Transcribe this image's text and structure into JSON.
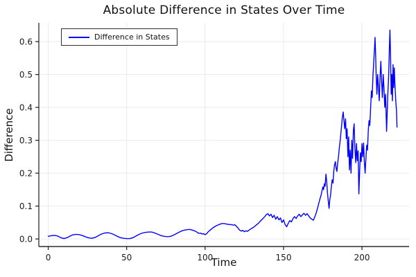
{
  "chart": {
    "title": "Absolute Difference in States Over Time",
    "xlabel": "Time",
    "ylabel": "Difference",
    "legend": {
      "label": "Difference in States"
    },
    "colors": {
      "line": "#0000ff",
      "grid": "#e9e9e9",
      "axis": "#2b2b2b",
      "text": "#191919",
      "background": "#ffffff"
    }
  },
  "chart_data": {
    "type": "line",
    "title": "Absolute Difference in States Over Time",
    "xlabel": "Time",
    "ylabel": "Difference",
    "grid": true,
    "legend_position": "top-left",
    "xlim": [
      -6,
      230
    ],
    "ylim": [
      -0.023,
      0.657
    ],
    "xticks": [
      0,
      50,
      100,
      150,
      200
    ],
    "yticks": [
      0.0,
      0.1,
      0.2,
      0.3,
      0.4,
      0.5,
      0.6
    ],
    "series": [
      {
        "name": "Difference in States",
        "color": "#0000ff",
        "x": [
          0,
          2,
          4,
          6,
          8,
          10,
          12,
          14,
          16,
          18,
          20,
          22,
          24,
          26,
          28,
          30,
          32,
          34,
          36,
          38,
          40,
          42,
          44,
          46,
          48,
          50,
          52,
          54,
          56,
          58,
          60,
          62,
          64,
          66,
          68,
          70,
          72,
          74,
          76,
          78,
          80,
          82,
          84,
          86,
          88,
          90,
          92,
          94,
          95,
          96,
          97,
          98,
          99,
          100,
          101,
          102,
          103,
          104,
          105,
          106,
          107,
          108,
          109,
          110,
          111,
          112,
          113,
          114,
          115,
          116,
          117,
          118,
          119,
          120,
          121,
          122,
          123,
          124,
          125,
          126,
          127,
          128,
          129,
          130,
          131,
          132,
          133,
          134,
          135,
          136,
          137,
          138,
          139,
          140,
          141,
          142,
          143,
          144,
          145,
          146,
          147,
          148,
          149,
          150,
          151,
          152,
          153,
          154,
          155,
          156,
          157,
          158,
          159,
          160,
          161,
          162,
          163,
          164,
          165,
          166,
          167,
          168,
          169,
          170,
          171,
          172,
          173,
          174,
          175,
          175.5,
          176,
          176.5,
          177,
          177.5,
          178,
          178.5,
          179,
          179.5,
          180,
          180.5,
          181,
          181.5,
          182,
          182.5,
          183,
          183.5,
          184,
          184.5,
          185,
          185.5,
          186,
          186.5,
          187,
          187.5,
          188,
          188.5,
          189,
          189.5,
          190,
          190.5,
          191,
          191.5,
          192,
          192.5,
          193,
          193.5,
          194,
          194.5,
          195,
          195.5,
          196,
          196.5,
          197,
          197.5,
          198,
          198.5,
          199,
          199.5,
          200,
          200.5,
          201,
          201.5,
          202,
          202.5,
          203,
          203.5,
          204,
          204.5,
          205,
          205.5,
          206,
          206.5,
          207,
          207.5,
          208,
          208.3,
          208.7,
          209,
          209.5,
          210,
          210.5,
          211,
          211.5,
          212,
          212.5,
          213,
          213.5,
          214,
          214.5,
          215,
          215.7,
          216.3,
          217,
          217.4,
          217.8,
          218.2,
          218.6,
          219,
          219.4,
          219.8,
          220.2,
          220.6,
          221,
          221.5,
          222,
          222.3
        ],
        "y": [
          0.008,
          0.01,
          0.011,
          0.009,
          0.004,
          0.001,
          0.004,
          0.009,
          0.013,
          0.014,
          0.013,
          0.01,
          0.006,
          0.003,
          0.002,
          0.005,
          0.01,
          0.015,
          0.018,
          0.019,
          0.017,
          0.013,
          0.008,
          0.004,
          0.002,
          0.001,
          0.001,
          0.004,
          0.009,
          0.014,
          0.018,
          0.02,
          0.021,
          0.021,
          0.018,
          0.014,
          0.01,
          0.008,
          0.007,
          0.008,
          0.012,
          0.017,
          0.022,
          0.026,
          0.028,
          0.029,
          0.027,
          0.023,
          0.02,
          0.017,
          0.018,
          0.015,
          0.016,
          0.013,
          0.016,
          0.022,
          0.026,
          0.03,
          0.034,
          0.037,
          0.04,
          0.042,
          0.044,
          0.046,
          0.047,
          0.047,
          0.046,
          0.045,
          0.044,
          0.044,
          0.043,
          0.042,
          0.043,
          0.038,
          0.033,
          0.027,
          0.024,
          0.026,
          0.022,
          0.025,
          0.023,
          0.027,
          0.03,
          0.033,
          0.036,
          0.04,
          0.044,
          0.048,
          0.053,
          0.058,
          0.063,
          0.068,
          0.074,
          0.077,
          0.07,
          0.075,
          0.065,
          0.072,
          0.06,
          0.068,
          0.058,
          0.064,
          0.05,
          0.058,
          0.044,
          0.037,
          0.048,
          0.056,
          0.052,
          0.062,
          0.068,
          0.062,
          0.07,
          0.075,
          0.068,
          0.073,
          0.078,
          0.072,
          0.077,
          0.07,
          0.064,
          0.06,
          0.057,
          0.068,
          0.082,
          0.1,
          0.118,
          0.135,
          0.158,
          0.15,
          0.168,
          0.16,
          0.197,
          0.175,
          0.14,
          0.115,
          0.093,
          0.12,
          0.135,
          0.16,
          0.18,
          0.17,
          0.205,
          0.225,
          0.235,
          0.215,
          0.205,
          0.23,
          0.25,
          0.275,
          0.295,
          0.32,
          0.345,
          0.37,
          0.386,
          0.36,
          0.335,
          0.365,
          0.305,
          0.335,
          0.25,
          0.31,
          0.21,
          0.27,
          0.2,
          0.3,
          0.245,
          0.33,
          0.35,
          0.275,
          0.232,
          0.29,
          0.238,
          0.268,
          0.137,
          0.205,
          0.262,
          0.235,
          0.29,
          0.25,
          0.292,
          0.235,
          0.2,
          0.245,
          0.285,
          0.27,
          0.33,
          0.36,
          0.345,
          0.4,
          0.45,
          0.43,
          0.5,
          0.54,
          0.58,
          0.613,
          0.56,
          0.5,
          0.44,
          0.5,
          0.46,
          0.42,
          0.49,
          0.54,
          0.48,
          0.43,
          0.5,
          0.46,
          0.4,
          0.44,
          0.327,
          0.42,
          0.5,
          0.57,
          0.635,
          0.56,
          0.44,
          0.5,
          0.42,
          0.53,
          0.46,
          0.52,
          0.47,
          0.42,
          0.39,
          0.34
        ]
      }
    ]
  }
}
